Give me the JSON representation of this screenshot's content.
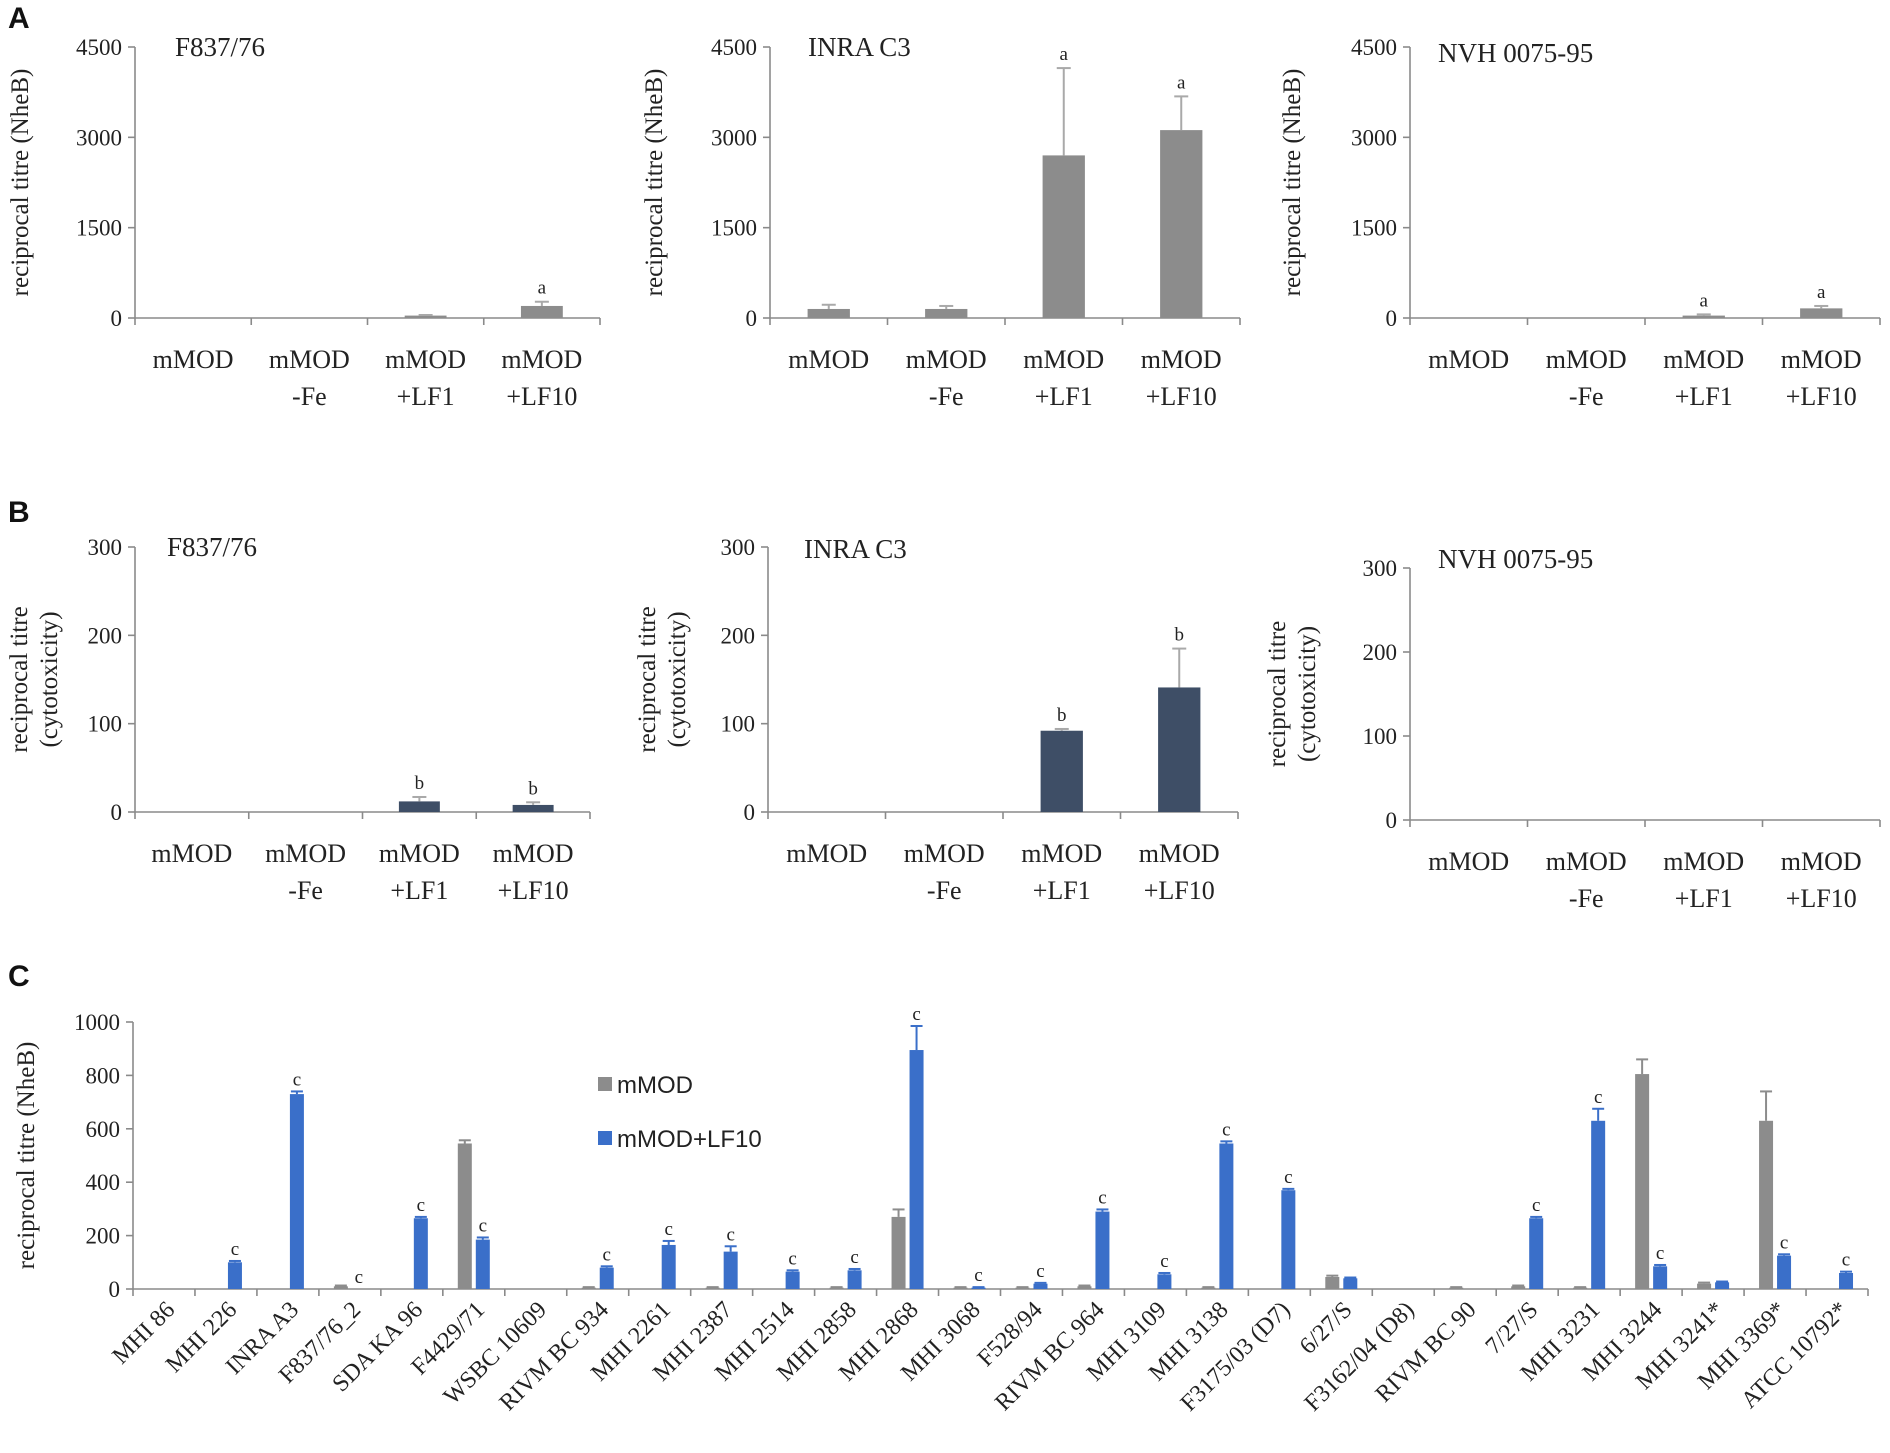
{
  "colors": {
    "gray": "#8c8c8c",
    "darkblue": "#3e4e66",
    "blue": "#3a6fc9",
    "errorbar_gray": "#a9a9a9",
    "axis": "#8a8a8a"
  },
  "chart_data": [
    {
      "panel": "A",
      "type": "bar",
      "title": "F837/76",
      "ylabel": "reciprocal titre (NheB)",
      "ylim": [
        0,
        4500
      ],
      "yticks": [
        0,
        1500,
        3000,
        4500
      ],
      "categories": [
        [
          "mMOD"
        ],
        [
          "mMOD",
          "-Fe"
        ],
        [
          "mMOD",
          "+LF1"
        ],
        [
          "mMOD",
          "+LF10"
        ]
      ],
      "values": [
        0,
        0,
        40,
        200
      ],
      "errors": [
        0,
        0,
        10,
        70
      ],
      "labels": [
        "",
        "",
        "",
        "a"
      ],
      "color": "gray"
    },
    {
      "panel": "",
      "type": "bar",
      "title": "INRA C3",
      "ylabel": "reciprocal titre (NheB)",
      "ylim": [
        0,
        4500
      ],
      "yticks": [
        0,
        1500,
        3000,
        4500
      ],
      "categories": [
        [
          "mMOD"
        ],
        [
          "mMOD",
          "-Fe"
        ],
        [
          "mMOD",
          "+LF1"
        ],
        [
          "mMOD",
          "+LF10"
        ]
      ],
      "values": [
        150,
        150,
        2700,
        3120
      ],
      "errors": [
        70,
        50,
        1450,
        560
      ],
      "labels": [
        "",
        "",
        "a",
        "a"
      ],
      "color": "gray"
    },
    {
      "panel": "",
      "type": "bar",
      "title": "NVH 0075-95",
      "ylabel": "reciprocal titre (NheB)",
      "ylim": [
        0,
        4500
      ],
      "yticks": [
        0,
        1500,
        3000,
        4500
      ],
      "categories": [
        [
          "mMOD"
        ],
        [
          "mMOD",
          "-Fe"
        ],
        [
          "mMOD",
          "+LF1"
        ],
        [
          "mMOD",
          "+LF10"
        ]
      ],
      "values": [
        0,
        0,
        40,
        160
      ],
      "errors": [
        0,
        0,
        20,
        40
      ],
      "labels": [
        "",
        "",
        "a",
        "a"
      ],
      "color": "gray"
    },
    {
      "panel": "B",
      "type": "bar",
      "title": "F837/76",
      "ylabel": [
        "reciprocal titre",
        "(cytotoxicity)"
      ],
      "ylim": [
        0,
        300
      ],
      "yticks": [
        0,
        100,
        200,
        300
      ],
      "categories": [
        [
          "mMOD"
        ],
        [
          "mMOD",
          "-Fe"
        ],
        [
          "mMOD",
          "+LF1"
        ],
        [
          "mMOD",
          "+LF10"
        ]
      ],
      "values": [
        0,
        0,
        12,
        8
      ],
      "errors": [
        0,
        0,
        5,
        3
      ],
      "labels": [
        "",
        "",
        "b",
        "b"
      ],
      "color": "darkblue"
    },
    {
      "panel": "",
      "type": "bar",
      "title": "INRA C3",
      "ylabel": [
        "reciprocal titre",
        "(cytotoxicity)"
      ],
      "ylim": [
        0,
        300
      ],
      "yticks": [
        0,
        100,
        200,
        300
      ],
      "categories": [
        [
          "mMOD"
        ],
        [
          "mMOD",
          "-Fe"
        ],
        [
          "mMOD",
          "+LF1"
        ],
        [
          "mMOD",
          "+LF10"
        ]
      ],
      "values": [
        0,
        0,
        92,
        141
      ],
      "errors": [
        0,
        0,
        2,
        44
      ],
      "labels": [
        "",
        "",
        "b",
        "b"
      ],
      "color": "darkblue"
    },
    {
      "panel": "",
      "type": "bar",
      "title": "NVH 0075-95",
      "ylabel": [
        "reciprocal titre",
        "(cytotoxicity)"
      ],
      "ylim": [
        0,
        300
      ],
      "yticks": [
        0,
        100,
        200,
        300
      ],
      "categories": [
        [
          "mMOD"
        ],
        [
          "mMOD",
          "-Fe"
        ],
        [
          "mMOD",
          "+LF1"
        ],
        [
          "mMOD",
          "+LF10"
        ]
      ],
      "values": [
        0,
        0,
        0,
        0
      ],
      "errors": [
        0,
        0,
        0,
        0
      ],
      "labels": [
        "",
        "",
        "",
        ""
      ],
      "color": "darkblue"
    },
    {
      "panel": "C",
      "type": "bar",
      "ylabel": "reciprocal titre (NheB)",
      "ylim": [
        0,
        1000
      ],
      "yticks": [
        0,
        200,
        400,
        600,
        800,
        1000
      ],
      "legend": [
        "mMOD",
        "mMOD+LF10"
      ],
      "categories": [
        "MHI 86",
        "MHI 226",
        "INRA A3",
        "F837/76_2",
        "SDA KA 96",
        "F4429/71",
        "WSBC 10609",
        "RIVM BC 934",
        "MHI 2261",
        "MHI 2387",
        "MHI 2514",
        "MHI 2858",
        "MHI 2868",
        "MHI 3068",
        "F528/94",
        "RIVM BC 964",
        "MHI 3109",
        "MHI 3138",
        "F3175/03 (D7)",
        "6/27/S",
        "F3162/04 (D8)",
        "RIVM BC 90",
        "7/27/S",
        "MHI 3231",
        "MHI 3244",
        "MHI 3241*",
        "MHI 3369*",
        "ATCC 10792*"
      ],
      "series": [
        {
          "name": "mMOD",
          "color": "gray",
          "values": [
            0,
            0,
            0,
            10,
            0,
            545,
            0,
            5,
            0,
            5,
            0,
            5,
            270,
            5,
            5,
            10,
            0,
            5,
            0,
            45,
            0,
            5,
            10,
            5,
            805,
            20,
            630,
            0
          ],
          "errors": [
            0,
            0,
            0,
            3,
            0,
            12,
            0,
            2,
            0,
            2,
            0,
            2,
            28,
            2,
            2,
            3,
            0,
            2,
            0,
            5,
            0,
            2,
            3,
            2,
            55,
            4,
            110,
            0
          ],
          "labels": [
            "",
            "",
            "",
            "",
            "",
            "",
            "",
            "",
            "",
            "",
            "",
            "",
            "",
            "",
            "",
            "",
            "",
            "",
            "",
            "",
            "",
            "",
            "",
            "",
            "",
            "",
            "",
            ""
          ]
        },
        {
          "name": "mMOD+LF10",
          "color": "blue",
          "values": [
            0,
            100,
            730,
            0,
            265,
            185,
            0,
            80,
            165,
            140,
            65,
            70,
            895,
            5,
            20,
            290,
            55,
            545,
            370,
            40,
            0,
            0,
            265,
            630,
            85,
            25,
            125,
            60
          ],
          "errors": [
            0,
            5,
            10,
            0,
            5,
            8,
            0,
            5,
            15,
            20,
            5,
            5,
            90,
            2,
            3,
            8,
            5,
            8,
            5,
            3,
            0,
            0,
            5,
            45,
            5,
            3,
            5,
            5
          ],
          "labels": [
            "",
            "c",
            "c",
            "c",
            "c",
            "c",
            "",
            "c",
            "c",
            "c",
            "c",
            "c",
            "c",
            "c",
            "c",
            "c",
            "c",
            "c",
            "c",
            "",
            "",
            "",
            "c",
            "c",
            "c",
            "",
            "c",
            "c"
          ]
        }
      ]
    }
  ]
}
